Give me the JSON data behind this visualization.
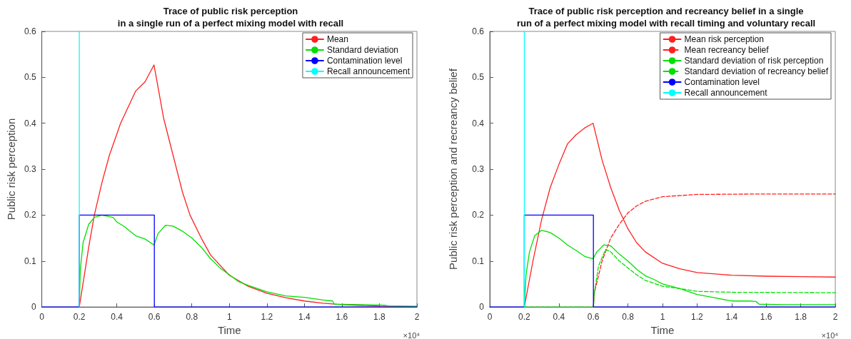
{
  "chart_data": [
    {
      "type": "line",
      "title": "Trace of public risk perception\nin a single run of a perfect mixing model with recall",
      "xlabel": "Time",
      "ylabel": "Public risk perception",
      "xlim": [
        0,
        2
      ],
      "xticks": [
        0,
        0.2,
        0.4,
        0.6,
        0.8,
        1,
        1.2,
        1.4,
        1.6,
        1.8,
        2
      ],
      "ylim": [
        0,
        0.6
      ],
      "yticks": [
        0,
        0.1,
        0.2,
        0.3,
        0.4,
        0.5,
        0.6
      ],
      "grid": false,
      "legend": "top right",
      "marker": "none",
      "annotations": [
        "×10⁴"
      ],
      "series": [
        {
          "name": "Mean",
          "color": "#ff2020",
          "x": [
            0.2,
            0.25,
            0.28,
            0.32,
            0.36,
            0.42,
            0.5,
            0.55,
            0.598,
            0.65,
            0.7,
            0.75,
            0.79,
            0.85,
            0.9,
            1.0,
            1.1,
            1.2,
            1.3,
            1.4,
            1.5,
            1.6,
            1.8,
            2
          ],
          "values": [
            0,
            0.13,
            0.2,
            0.27,
            0.33,
            0.4,
            0.47,
            0.49,
            0.527,
            0.41,
            0.33,
            0.25,
            0.2,
            0.15,
            0.113,
            0.069,
            0.045,
            0.03,
            0.02,
            0.013,
            0.008,
            0.005,
            0.002,
            0.001
          ]
        },
        {
          "name": "Standard deviation",
          "color": "#00e000",
          "x": [
            0.2,
            0.205,
            0.22,
            0.25,
            0.28,
            0.32,
            0.38,
            0.4,
            0.44,
            0.5,
            0.55,
            0.598,
            0.62,
            0.66,
            0.7,
            0.75,
            0.8,
            0.85,
            0.9,
            0.95,
            1.0,
            1.05,
            1.1,
            1.2,
            1.3,
            1.4,
            1.5,
            1.55,
            1.56,
            1.7,
            1.83,
            1.85,
            2
          ],
          "values": [
            0,
            0.08,
            0.14,
            0.18,
            0.195,
            0.2,
            0.195,
            0.185,
            0.175,
            0.155,
            0.148,
            0.135,
            0.16,
            0.178,
            0.176,
            0.165,
            0.15,
            0.13,
            0.105,
            0.085,
            0.07,
            0.055,
            0.047,
            0.033,
            0.024,
            0.021,
            0.015,
            0.013,
            0.006,
            0.005,
            0.004,
            0.002,
            0.001
          ]
        },
        {
          "name": "Contamination level",
          "color": "#0000ff",
          "x": [
            0,
            0.2,
            0.2,
            0.6,
            0.6,
            2
          ],
          "values": [
            0,
            0,
            0.2,
            0.2,
            0,
            0
          ]
        },
        {
          "name": "Recall announcement",
          "color": "#00ffff",
          "x": [
            0.2,
            0.2
          ],
          "values": [
            0,
            0.6
          ]
        }
      ]
    },
    {
      "type": "line",
      "title": "Trace of public risk perception and recreancy belief in a single\nrun of a perfect mixing model with recall timing and voluntary recall",
      "xlabel": "Time",
      "ylabel": "Public risk perception and recreancy belief",
      "xlim": [
        0,
        2
      ],
      "xticks": [
        0,
        0.2,
        0.4,
        0.6,
        0.8,
        1,
        1.2,
        1.4,
        1.6,
        1.8,
        2
      ],
      "ylim": [
        0,
        0.6
      ],
      "yticks": [
        0,
        0.1,
        0.2,
        0.3,
        0.4,
        0.5,
        0.6
      ],
      "grid": false,
      "legend": "top right",
      "marker": "none",
      "annotations": [
        "×10⁴"
      ],
      "series": [
        {
          "name": "Mean risk perception",
          "color": "#ff2020",
          "line_style": "solid",
          "x": [
            0.2,
            0.25,
            0.3,
            0.35,
            0.4,
            0.45,
            0.5,
            0.55,
            0.598,
            0.65,
            0.7,
            0.75,
            0.8,
            0.85,
            0.9,
            1.0,
            1.1,
            1.2,
            1.4,
            1.6,
            1.8,
            2
          ],
          "values": [
            0,
            0.1,
            0.19,
            0.26,
            0.31,
            0.355,
            0.375,
            0.39,
            0.4,
            0.32,
            0.26,
            0.21,
            0.17,
            0.14,
            0.12,
            0.095,
            0.083,
            0.075,
            0.069,
            0.067,
            0.066,
            0.065
          ]
        },
        {
          "name": "Mean recreancy belief",
          "color": "#ff2020",
          "line_style": "dashed",
          "x": [
            0.6,
            0.605,
            0.65,
            0.7,
            0.75,
            0.8,
            0.85,
            0.9,
            1.0,
            1.2,
            1.6,
            2
          ],
          "values": [
            0,
            0.03,
            0.1,
            0.15,
            0.18,
            0.205,
            0.22,
            0.23,
            0.24,
            0.245,
            0.246,
            0.246
          ]
        },
        {
          "name": "Standard deviation of risk perception",
          "color": "#00e000",
          "line_style": "solid",
          "x": [
            0.2,
            0.21,
            0.23,
            0.26,
            0.3,
            0.35,
            0.4,
            0.45,
            0.5,
            0.55,
            0.598,
            0.62,
            0.66,
            0.7,
            0.75,
            0.8,
            0.85,
            0.9,
            0.95,
            1.0,
            1.1,
            1.2,
            1.3,
            1.4,
            1.5,
            1.54,
            1.56,
            1.7,
            2
          ],
          "values": [
            0,
            0.07,
            0.12,
            0.155,
            0.167,
            0.162,
            0.15,
            0.135,
            0.123,
            0.11,
            0.105,
            0.12,
            0.135,
            0.133,
            0.115,
            0.1,
            0.082,
            0.068,
            0.06,
            0.05,
            0.04,
            0.027,
            0.02,
            0.013,
            0.013,
            0.012,
            0.006,
            0.005,
            0.005
          ]
        },
        {
          "name": "Standard deviation of recreancy belief",
          "color": "#00e000",
          "line_style": "dashed",
          "x": [
            0.2,
            0.6,
            0.605,
            0.63,
            0.67,
            0.7,
            0.75,
            0.8,
            0.85,
            0.9,
            1.0,
            1.1,
            1.2,
            1.4,
            2
          ],
          "values": [
            0,
            0,
            0.03,
            0.09,
            0.125,
            0.12,
            0.1,
            0.085,
            0.07,
            0.058,
            0.045,
            0.04,
            0.034,
            0.032,
            0.031
          ]
        },
        {
          "name": "Contamination level",
          "color": "#0000ff",
          "line_style": "solid",
          "x": [
            0,
            0.2,
            0.2,
            0.6,
            0.6,
            2
          ],
          "values": [
            0,
            0,
            0.2,
            0.2,
            0,
            0
          ]
        },
        {
          "name": "Recall announcement",
          "color": "#00ffff",
          "line_style": "solid",
          "x": [
            0.2,
            0.2
          ],
          "values": [
            0,
            0.6
          ]
        }
      ]
    }
  ]
}
